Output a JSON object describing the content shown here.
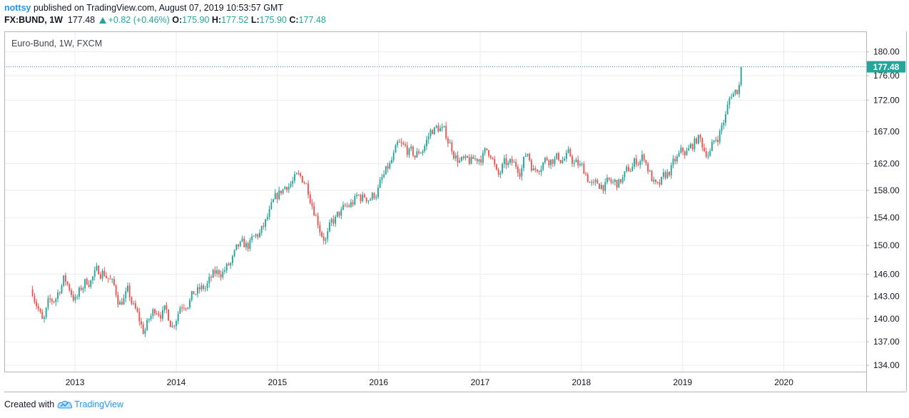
{
  "header": {
    "author": "nottsy",
    "published_text": "published on TradingView.com, August 07, 2019 10:53:57 GMT",
    "symbol": "FX:BUND, 1W",
    "last": "177.48",
    "change": "+0.82 (+0.46%)",
    "o_label": "O:",
    "o_value": "175.90",
    "h_label": "H:",
    "h_value": "177.52",
    "l_label": "L:",
    "l_value": "175.90",
    "c_label": "C:",
    "c_value": "177.48"
  },
  "footer": {
    "created_with": "Created with",
    "brand": "TradingView"
  },
  "colors": {
    "up": "#26a69a",
    "down": "#ef5350",
    "grid": "#e9ecf1",
    "price_line": "#26a69a"
  },
  "chart_data": {
    "type": "candlestick",
    "title": "Euro-Bund, 1W, FXCM",
    "y_scale": "log",
    "ylim": [
      133.2,
      183.5
    ],
    "y_ticks": [
      "180.00",
      "176.00",
      "172.00",
      "167.00",
      "162.00",
      "158.00",
      "154.00",
      "150.00",
      "146.00",
      "143.00",
      "140.00",
      "137.00",
      "134.00"
    ],
    "x_ticks": [
      "2013",
      "2014",
      "2015",
      "2016",
      "2017",
      "2018",
      "2019",
      "2020"
    ],
    "xlim": [
      "2012-04-21",
      "2020-10-24"
    ],
    "last_price": 177.48,
    "last_price_label": "177.48",
    "grid": true,
    "close_path": [
      [
        "2012-08-01",
        143.9
      ],
      [
        "2012-08-20",
        142.0
      ],
      [
        "2012-09-08",
        139.0
      ],
      [
        "2012-09-25",
        141.5
      ],
      [
        "2012-10-20",
        142.5
      ],
      [
        "2012-11-20",
        145.4
      ],
      [
        "2012-12-10",
        144.3
      ],
      [
        "2013-01-05",
        142.5
      ],
      [
        "2013-02-05",
        144.8
      ],
      [
        "2013-03-10",
        145.8
      ],
      [
        "2013-04-10",
        146.6
      ],
      [
        "2013-05-05",
        145.5
      ],
      [
        "2013-06-10",
        142.3
      ],
      [
        "2013-07-10",
        143.3
      ],
      [
        "2013-08-05",
        141.0
      ],
      [
        "2013-09-05",
        138.3
      ],
      [
        "2013-09-25",
        139.7
      ],
      [
        "2013-10-20",
        141.5
      ],
      [
        "2013-11-20",
        141.0
      ],
      [
        "2013-12-20",
        139.3
      ],
      [
        "2014-01-15",
        142.0
      ],
      [
        "2014-02-15",
        142.8
      ],
      [
        "2014-03-15",
        143.5
      ],
      [
        "2014-04-15",
        144.0
      ],
      [
        "2014-05-15",
        145.6
      ],
      [
        "2014-06-15",
        146.5
      ],
      [
        "2014-07-15",
        147.2
      ],
      [
        "2014-08-15",
        149.5
      ],
      [
        "2014-09-15",
        149.8
      ],
      [
        "2014-10-10",
        150.8
      ],
      [
        "2014-11-10",
        152.2
      ],
      [
        "2014-12-10",
        155.0
      ],
      [
        "2015-01-10",
        157.5
      ],
      [
        "2015-02-05",
        159.0
      ],
      [
        "2015-03-05",
        159.5
      ],
      [
        "2015-04-10",
        159.5
      ],
      [
        "2015-04-25",
        158.0
      ],
      [
        "2015-05-15",
        155.5
      ],
      [
        "2015-06-05",
        152.5
      ],
      [
        "2015-06-25",
        151.0
      ],
      [
        "2015-07-15",
        152.8
      ],
      [
        "2015-08-15",
        154.5
      ],
      [
        "2015-09-15",
        155.5
      ],
      [
        "2015-10-15",
        156.8
      ],
      [
        "2015-11-15",
        157.0
      ],
      [
        "2015-12-15",
        157.3
      ],
      [
        "2016-01-15",
        159.5
      ],
      [
        "2016-02-10",
        161.5
      ],
      [
        "2016-03-10",
        164.3
      ],
      [
        "2016-04-10",
        164.0
      ],
      [
        "2016-05-10",
        163.0
      ],
      [
        "2016-06-10",
        164.5
      ],
      [
        "2016-07-10",
        167.3
      ],
      [
        "2016-08-10",
        167.5
      ],
      [
        "2016-09-10",
        165.5
      ],
      [
        "2016-10-10",
        163.0
      ],
      [
        "2016-11-10",
        161.8
      ],
      [
        "2016-12-10",
        162.3
      ],
      [
        "2017-01-10",
        163.5
      ],
      [
        "2017-02-10",
        164.0
      ],
      [
        "2017-03-05",
        159.5
      ],
      [
        "2017-03-25",
        161.5
      ],
      [
        "2017-04-25",
        161.7
      ],
      [
        "2017-05-25",
        161.5
      ],
      [
        "2017-06-20",
        163.8
      ],
      [
        "2017-07-15",
        161.0
      ],
      [
        "2017-08-15",
        162.8
      ],
      [
        "2017-09-15",
        163.0
      ],
      [
        "2017-10-15",
        162.8
      ],
      [
        "2017-11-15",
        163.0
      ],
      [
        "2017-12-10",
        162.0
      ],
      [
        "2018-01-15",
        160.8
      ],
      [
        "2018-02-15",
        158.3
      ],
      [
        "2018-03-15",
        159.0
      ],
      [
        "2018-04-15",
        158.8
      ],
      [
        "2018-05-15",
        159.0
      ],
      [
        "2018-06-15",
        160.5
      ],
      [
        "2018-07-15",
        162.3
      ],
      [
        "2018-08-15",
        163.2
      ],
      [
        "2018-09-10",
        160.0
      ],
      [
        "2018-10-01",
        157.8
      ],
      [
        "2018-10-25",
        159.5
      ],
      [
        "2018-11-25",
        161.5
      ],
      [
        "2018-12-25",
        163.3
      ],
      [
        "2019-01-25",
        164.0
      ],
      [
        "2019-02-25",
        166.0
      ],
      [
        "2019-03-20",
        164.3
      ],
      [
        "2019-04-10",
        164.0
      ],
      [
        "2019-05-10",
        166.5
      ],
      [
        "2019-06-05",
        169.5
      ],
      [
        "2019-06-25",
        173.0
      ],
      [
        "2019-07-20",
        173.8
      ],
      [
        "2019-08-05",
        177.48
      ]
    ]
  }
}
